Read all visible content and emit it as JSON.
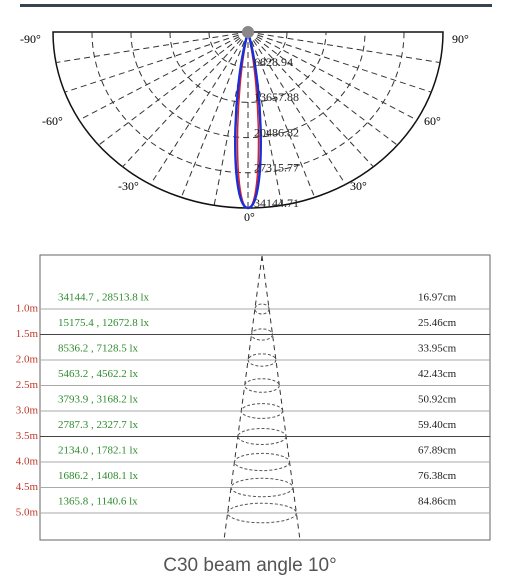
{
  "polar": {
    "angle_labels": [
      "-90°",
      "90°",
      "-60°",
      "60°",
      "-30°",
      "30°",
      "0°"
    ],
    "radial_labels": [
      "6828.94",
      "13657.88",
      "20486.82",
      "27315.77",
      "34144.71"
    ]
  },
  "table": {
    "rows": [
      {
        "distance": "1.0m",
        "illuminance": "34144.7 , 28513.8 lx",
        "diameter": "16.97cm"
      },
      {
        "distance": "1.5m",
        "illuminance": "15175.4 , 12672.8 lx",
        "diameter": "25.46cm"
      },
      {
        "distance": "2.0m",
        "illuminance": "8536.2 , 7128.5 lx",
        "diameter": "33.95cm"
      },
      {
        "distance": "2.5m",
        "illuminance": "5463.2 , 4562.2 lx",
        "diameter": "42.43cm"
      },
      {
        "distance": "3.0m",
        "illuminance": "3793.9 , 3168.2 lx",
        "diameter": "50.92cm"
      },
      {
        "distance": "3.5m",
        "illuminance": "2787.3 , 2327.7 lx",
        "diameter": "59.40cm"
      },
      {
        "distance": "4.0m",
        "illuminance": "2134.0 , 1782.1 lx",
        "diameter": "67.89cm"
      },
      {
        "distance": "4.5m",
        "illuminance": "1686.2 , 1408.1 lx",
        "diameter": "76.38cm"
      },
      {
        "distance": "5.0m",
        "illuminance": "1365.8 , 1140.6 lx",
        "diameter": "84.86cm"
      }
    ]
  },
  "caption": "C30 beam angle 10°"
}
